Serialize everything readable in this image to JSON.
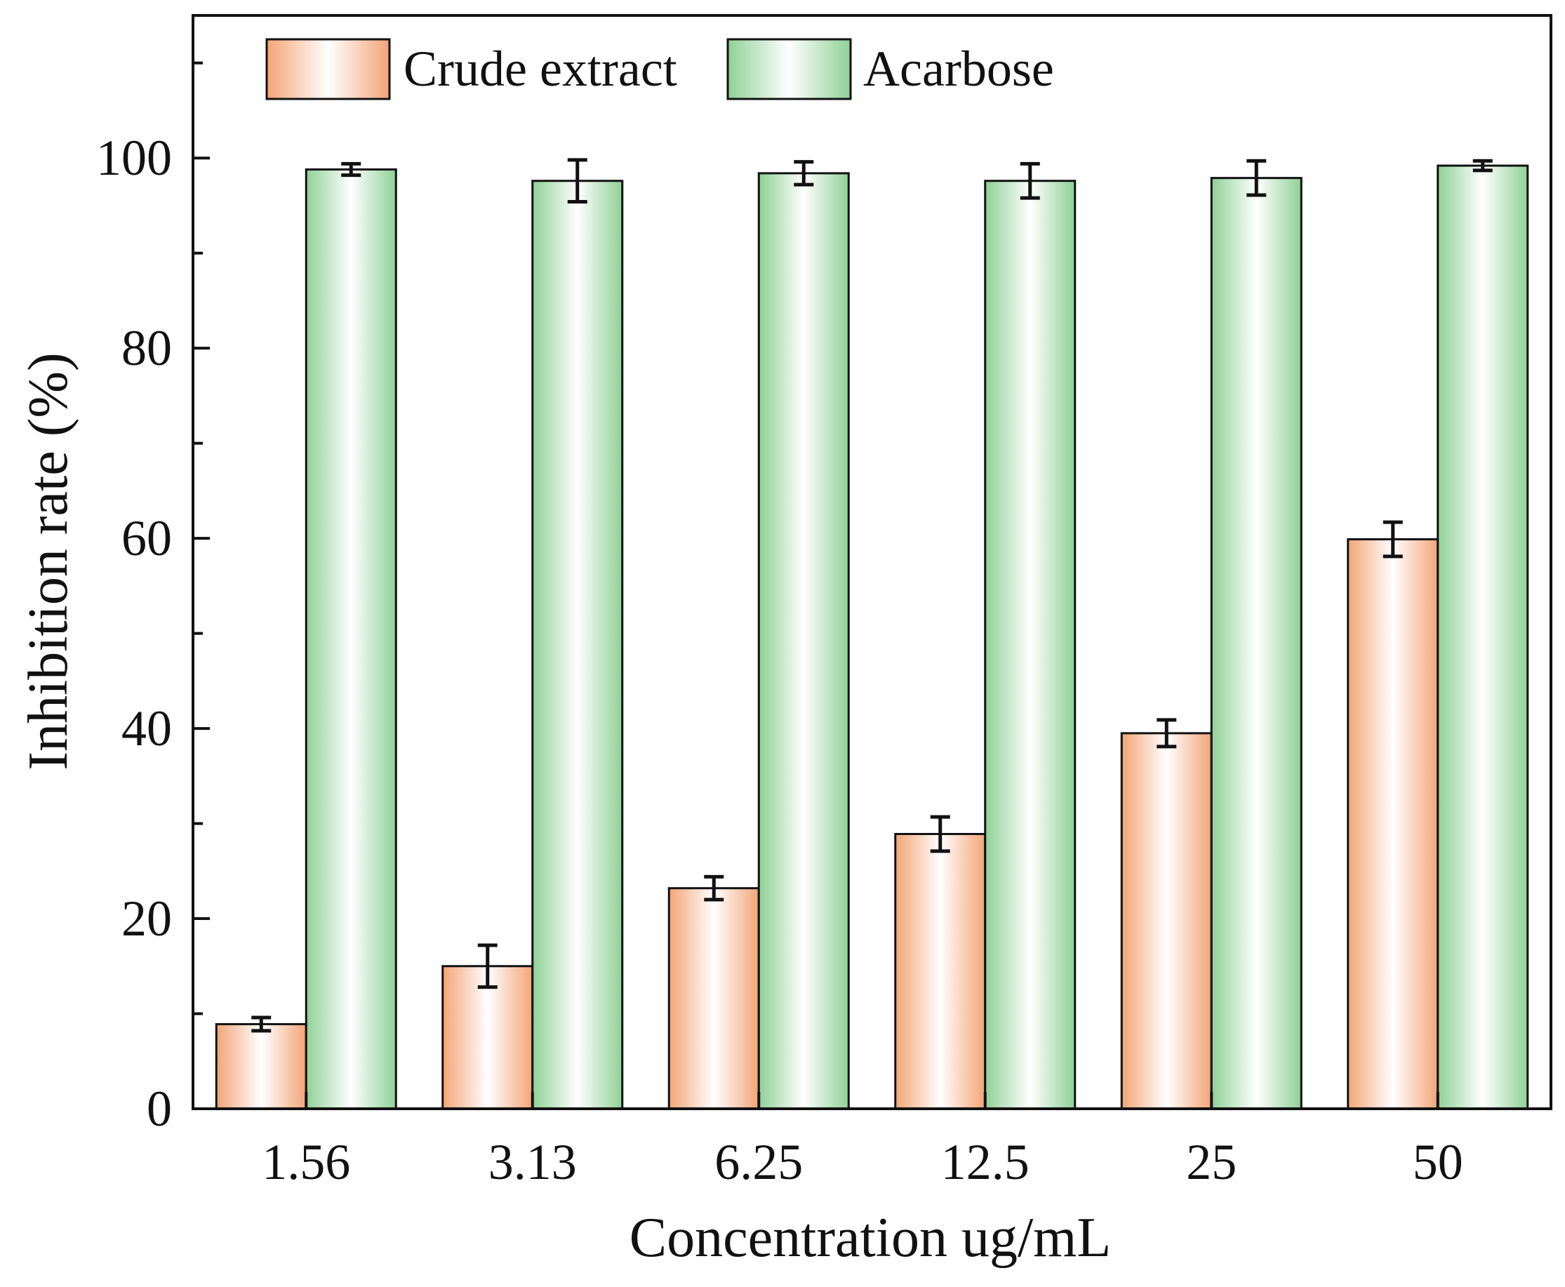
{
  "chart_data": {
    "type": "bar",
    "title": "",
    "xlabel": "Concentration ug/mL",
    "ylabel": "Inhibition  rate (%)",
    "categories": [
      "1.56",
      "3.13",
      "6.25",
      "12.5",
      "25",
      "50"
    ],
    "ylim": [
      0,
      115
    ],
    "yticks": [
      "0",
      "20",
      "40",
      "60",
      "80",
      "100"
    ],
    "grid": false,
    "legend_position": "top-left",
    "series": [
      {
        "name": "Crude extract",
        "values": [
          8.9,
          15.0,
          23.2,
          28.9,
          39.5,
          59.9
        ],
        "errors": [
          0.7,
          2.2,
          1.2,
          1.8,
          1.4,
          1.8
        ],
        "color_edge": "#f3a576",
        "color_center": "#ffffff"
      },
      {
        "name": "Acarbose",
        "values": [
          98.8,
          97.6,
          98.4,
          97.6,
          97.9,
          99.2
        ],
        "errors": [
          0.6,
          2.2,
          1.2,
          1.8,
          1.8,
          0.5
        ],
        "color_edge": "#8fd196",
        "color_center": "#ffffff"
      }
    ]
  }
}
